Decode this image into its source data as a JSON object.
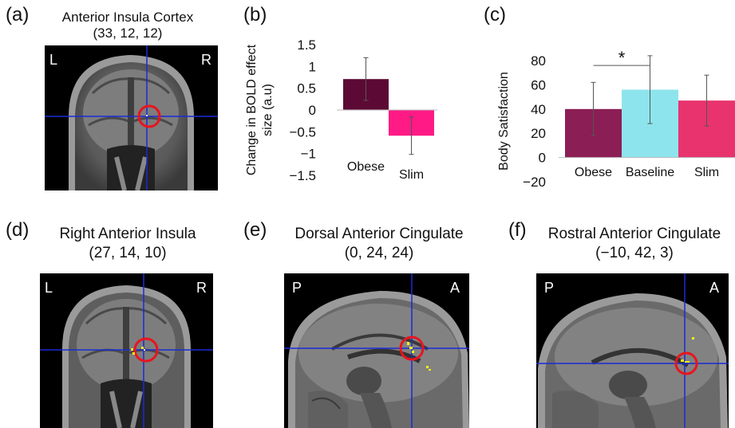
{
  "panels": {
    "a": {
      "label": "(a)",
      "title": "Anterior Insula Cortex",
      "coords": "(33, 12, 12)",
      "left": "L",
      "right": "R"
    },
    "b": {
      "label": "(b)"
    },
    "c": {
      "label": "(c)"
    },
    "d": {
      "label": "(d)",
      "title": "Right Anterior Insula",
      "coords": "(27, 14, 10)",
      "left": "L",
      "right": "R"
    },
    "e": {
      "label": "(e)",
      "title": "Dorsal Anterior Cingulate",
      "coords": "(0, 24, 24)",
      "left": "P",
      "right": "A"
    },
    "f": {
      "label": "(f)",
      "title": "Rostral Anterior Cingulate",
      "coords": "(−10, 42, 3)",
      "left": "P",
      "right": "A"
    }
  },
  "colors": {
    "dark_magenta": "#5c0a35",
    "pink": "#ff1a86",
    "maroon": "#8b1e55",
    "cyan": "#8ee4ec",
    "rose": "#e8336e",
    "crosshair": "#1a2bd6",
    "marker": "#e8141e",
    "activation": "#f3f315"
  },
  "chart_data": [
    {
      "type": "bar",
      "categories": [
        "Obese",
        "Slim"
      ],
      "values": [
        0.71,
        -0.59
      ],
      "error": [
        0.49,
        0.43
      ],
      "title": "",
      "xlabel": "",
      "ylabel": "Change in BOLD effect size (a.u)",
      "ylabel_lines": [
        "Change in BOLD effect",
        "size (a.u)"
      ],
      "yticks": [
        "1.5",
        "1",
        "0.5",
        "0",
        "−0.5",
        "−1",
        "−1.5"
      ],
      "ylim": [
        -1.5,
        1.5
      ]
    },
    {
      "type": "bar",
      "categories": [
        "Obese",
        "Baseline",
        "Slim"
      ],
      "values": [
        40,
        56,
        47
      ],
      "error": [
        22,
        28,
        21
      ],
      "title": "",
      "xlabel": "",
      "ylabel": "Body Satisfaction",
      "yticks": [
        "80",
        "60",
        "40",
        "20",
        "0",
        "−20"
      ],
      "ylim": [
        -20,
        80
      ],
      "annotation": "*"
    }
  ]
}
